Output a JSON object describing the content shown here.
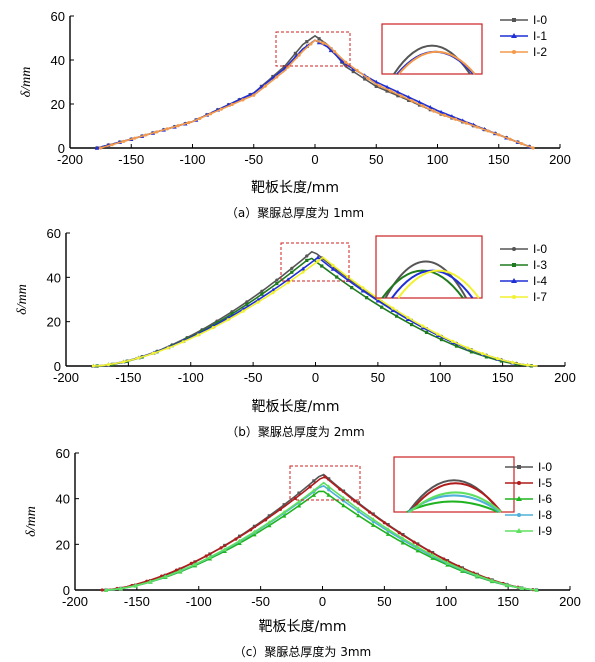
{
  "chart_data": [
    {
      "type": "line",
      "caption": "（a）聚脲总厚度为 1mm",
      "xlabel": "靶板长度/mm",
      "ylabel": "δ/mm",
      "xlim": [
        -200,
        200
      ],
      "ylim": [
        0,
        60
      ],
      "xticks": [
        "-200",
        "-150",
        "-100",
        "-50",
        "0",
        "50",
        "100",
        "150",
        "200"
      ],
      "yticks": [
        "0",
        "20",
        "40",
        "60"
      ],
      "inset": true,
      "legend_position": "top-right",
      "series": [
        {
          "name": "I-0",
          "color": "#555555",
          "marker": "square",
          "peak": 51,
          "xmin": -178,
          "xmax": 178,
          "skew": 0,
          "x": [
            -178,
            -150,
            -100,
            -50,
            -25,
            -10,
            0,
            10,
            25,
            50,
            100,
            150,
            178
          ],
          "y": [
            0,
            4,
            12,
            25,
            37,
            47,
            51,
            47,
            37,
            28,
            16,
            6,
            0
          ]
        },
        {
          "name": "I-1",
          "color": "#1f2fd6",
          "marker": "triangle",
          "peak": 49,
          "xmin": -178,
          "xmax": 178,
          "skew": 2,
          "x": [
            -178,
            -150,
            -100,
            -50,
            -25,
            -10,
            0,
            10,
            25,
            50,
            100,
            150,
            178
          ],
          "y": [
            0,
            4,
            12,
            25,
            36,
            45,
            49,
            46,
            38,
            30,
            17,
            6,
            0
          ]
        },
        {
          "name": "I-2",
          "color": "#f39a4c",
          "marker": "dot",
          "peak": 49,
          "xmin": -175,
          "xmax": 178,
          "skew": 3,
          "x": [
            -175,
            -150,
            -100,
            -50,
            -25,
            -10,
            0,
            10,
            25,
            50,
            100,
            150,
            178
          ],
          "y": [
            0,
            4,
            12,
            24,
            35,
            44,
            49,
            47,
            39,
            29,
            16,
            6,
            0
          ]
        }
      ]
    },
    {
      "type": "line",
      "caption": "（b）聚脲总厚度为 2mm",
      "xlabel": "靶板长度/mm",
      "ylabel": "δ/mm",
      "xlim": [
        -200,
        200
      ],
      "ylim": [
        0,
        60
      ],
      "xticks": [
        "-200",
        "-150",
        "-100",
        "-50",
        "0",
        "50",
        "100",
        "150",
        "200"
      ],
      "yticks": [
        "0",
        "20",
        "40",
        "60"
      ],
      "inset": true,
      "legend_position": "top-right",
      "series": [
        {
          "name": "I-0",
          "color": "#555555",
          "marker": "dot",
          "peak": 52,
          "xmin": -175,
          "xmax": 178,
          "skew": -2
        },
        {
          "name": "I-3",
          "color": "#1f7a1f",
          "marker": "square",
          "peak": 49,
          "xmin": -175,
          "xmax": 175,
          "skew": -4
        },
        {
          "name": "I-4",
          "color": "#1f2fd6",
          "marker": "triangle",
          "peak": 49,
          "xmin": -178,
          "xmax": 178,
          "skew": 2
        },
        {
          "name": "I-7",
          "color": "#f2f231",
          "marker": "dot",
          "peak": 49,
          "xmin": -178,
          "xmax": 178,
          "skew": 6
        }
      ]
    },
    {
      "type": "line",
      "caption": "（c）聚脲总厚度为 3mm",
      "xlabel": "靶板长度/mm",
      "ylabel": "δ/mm",
      "xlim": [
        -200,
        200
      ],
      "ylim": [
        0,
        60
      ],
      "xticks": [
        "-200",
        "-150",
        "-100",
        "-50",
        "0",
        "50",
        "100",
        "150",
        "200"
      ],
      "yticks": [
        "0",
        "20",
        "40",
        "60"
      ],
      "inset": true,
      "legend_position": "top-right",
      "series": [
        {
          "name": "I-0",
          "color": "#555555",
          "marker": "square",
          "peak": 51,
          "xmin": -175,
          "xmax": 175,
          "skew": 0
        },
        {
          "name": "I-5",
          "color": "#b01c1c",
          "marker": "dot",
          "peak": 50,
          "xmin": -178,
          "xmax": 175,
          "skew": 1
        },
        {
          "name": "I-6",
          "color": "#1fb31f",
          "marker": "triangle",
          "peak": 44,
          "xmin": -175,
          "xmax": 175,
          "skew": -1
        },
        {
          "name": "I-8",
          "color": "#4fb0d9",
          "marker": "dot",
          "peak": 46,
          "xmin": -175,
          "xmax": 175,
          "skew": 0
        },
        {
          "name": "I-9",
          "color": "#5fe05f",
          "marker": "triangle",
          "peak": 47,
          "xmin": -175,
          "xmax": 175,
          "skew": 1
        }
      ]
    }
  ]
}
